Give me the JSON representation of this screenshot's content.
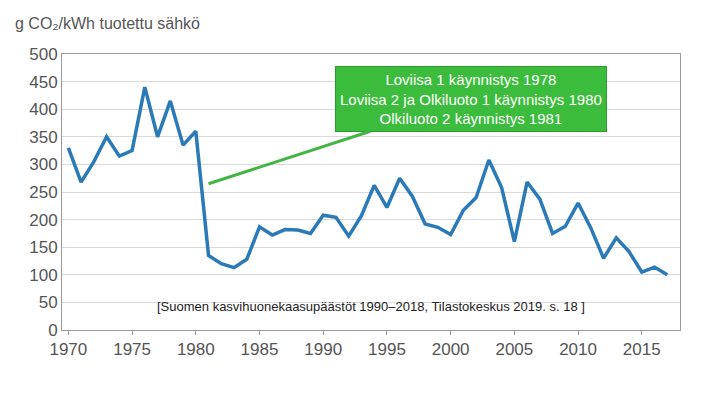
{
  "chart_data": {
    "type": "line",
    "y_label": "g CO₂/kWh tuotettu sähkö",
    "x": [
      1970,
      1971,
      1972,
      1973,
      1974,
      1975,
      1976,
      1977,
      1978,
      1979,
      1980,
      1981,
      1982,
      1983,
      1984,
      1985,
      1986,
      1987,
      1988,
      1989,
      1990,
      1991,
      1992,
      1993,
      1994,
      1995,
      1996,
      1997,
      1998,
      1999,
      2000,
      2001,
      2002,
      2003,
      2004,
      2005,
      2006,
      2007,
      2008,
      2009,
      2010,
      2011,
      2012,
      2013,
      2014,
      2015,
      2016,
      2017
    ],
    "values": [
      330,
      268,
      305,
      350,
      315,
      325,
      440,
      350,
      415,
      335,
      360,
      135,
      120,
      113,
      128,
      187,
      172,
      182,
      181,
      175,
      208,
      204,
      170,
      207,
      262,
      222,
      275,
      242,
      192,
      186,
      173,
      217,
      240,
      308,
      258,
      160,
      268,
      237,
      175,
      188,
      230,
      185,
      130,
      167,
      142,
      105,
      114,
      100
    ],
    "color": "#2a7ab8",
    "xlim": [
      1969.5,
      2018
    ],
    "xticks": [
      1970,
      1975,
      1980,
      1985,
      1990,
      1995,
      2000,
      2005,
      2010,
      2015
    ],
    "ylim": [
      0,
      500
    ],
    "yticks": [
      0,
      50,
      100,
      150,
      200,
      250,
      300,
      350,
      400,
      450,
      500
    ],
    "grid": true,
    "annotations": [
      {
        "lines": [
          "Loviisa 1 käynnistys 1978",
          "Loviisa 2 ja Olkiluoto 1 käynnistys 1980",
          "Olkiluoto 2 käynnistys 1981"
        ],
        "x": 1981,
        "y": 265
      }
    ],
    "source": "[Suomen kasvihuonekaasupäästöt 1990–2018, Tilastokeskus 2019. s. 18 ]"
  }
}
